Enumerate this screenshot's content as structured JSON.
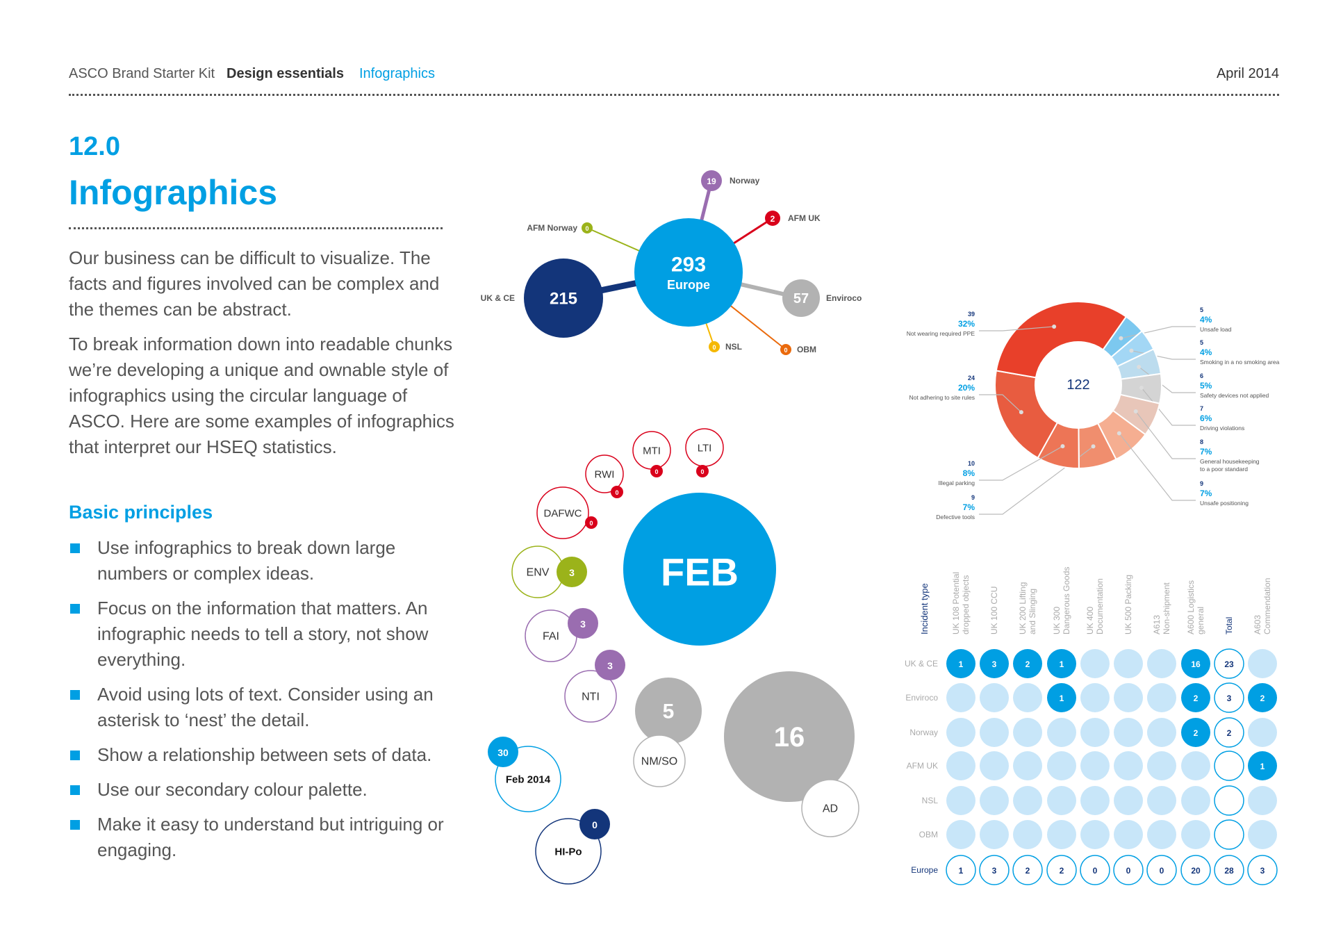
{
  "header": {
    "kit": "ASCO Brand Starter Kit",
    "section": "Design essentials",
    "page": "Infographics",
    "date": "April 2014"
  },
  "section_number": "12.0",
  "title": "Infographics",
  "intro": [
    "Our business can be difficult to visualize. The facts and figures involved can be complex and the themes can be abstract.",
    "To break information down into readable chunks we’re developing a unique and ownable style of infographics using the circular language of ASCO. Here are some examples of infographics that interpret our HSEQ statistics."
  ],
  "principles_title": "Basic principles",
  "principles": [
    "Use infographics to break down large numbers or complex ideas.",
    "Focus on the information that matters. An infographic needs to tell a story, not show everything.",
    "Avoid using lots of text. Consider using an asterisk to ‘nest’ the detail.",
    "Show a relationship between sets of data.",
    "Use our secondary colour palette.",
    "Make it easy to understand but intriguing or engaging."
  ],
  "colors": {
    "blue": "#009fe3",
    "navy": "#13357a",
    "light": "#c8e6f9",
    "grey": "#b2b2b2"
  },
  "chart_data": [
    {
      "type": "bubble-network",
      "center": {
        "label": "Europe",
        "value": 293
      },
      "nodes": [
        {
          "label": "UK & CE",
          "value": 215,
          "color": "#13357a"
        },
        {
          "label": "Norway",
          "value": 19,
          "color": "#9a6db0"
        },
        {
          "label": "AFM UK",
          "value": 2,
          "color": "#d9001b"
        },
        {
          "label": "Enviroco",
          "value": 57,
          "color": "#b2b2b2"
        },
        {
          "label": "NSL",
          "value": 0,
          "color": "#f5b800"
        },
        {
          "label": "OBM",
          "value": 0,
          "color": "#ea6a0c"
        },
        {
          "label": "AFM Norway",
          "value": 0,
          "color": "#9bb31a"
        }
      ]
    },
    {
      "type": "bubble-cluster",
      "main": "FEB",
      "items": [
        {
          "label": "16",
          "badge": null
        },
        {
          "label": "AD",
          "badge": null
        },
        {
          "label": "5",
          "badge": null
        },
        {
          "label": "NM/SO",
          "badge": null
        },
        {
          "label": "NTI",
          "badge": "3"
        },
        {
          "label": "FAI",
          "badge": "3"
        },
        {
          "label": "ENV",
          "badge": "3"
        },
        {
          "label": "DAFWC",
          "badge": "0"
        },
        {
          "label": "RWI",
          "badge": "0"
        },
        {
          "label": "MTI",
          "badge": "0"
        },
        {
          "label": "LTI",
          "badge": "0"
        },
        {
          "label": "Feb 2014",
          "badge": "30"
        },
        {
          "label": "HI-Po",
          "badge": "0"
        }
      ]
    },
    {
      "type": "pie",
      "total": "122",
      "slices": [
        {
          "label": "Unsafe load",
          "count": 5,
          "pct": "4%",
          "color": "#7cc8ef"
        },
        {
          "label": "Smoking in a no smoking area",
          "count": 5,
          "pct": "4%",
          "color": "#a3d7f5"
        },
        {
          "label": "Safety devices not applied",
          "count": 6,
          "pct": "5%",
          "color": "#bcdcee"
        },
        {
          "label": "Driving violations",
          "count": 7,
          "pct": "6%",
          "color": "#d4d4d4"
        },
        {
          "label": "General housekeeping to a poor standard",
          "count": 8,
          "pct": "7%",
          "color": "#e8c6b9"
        },
        {
          "label": "Unsafe positioning",
          "count": 9,
          "pct": "7%",
          "color": "#f5ae91"
        },
        {
          "label": "Defective tools",
          "count": 9,
          "pct": "7%",
          "color": "#f08e6e"
        },
        {
          "label": "Illegal parking",
          "count": 10,
          "pct": "8%",
          "color": "#ed7556"
        },
        {
          "label": "Not adhering to site rules",
          "count": 24,
          "pct": "20%",
          "color": "#e85c40"
        },
        {
          "label": "Not wearing required PPE",
          "count": 39,
          "pct": "32%",
          "color": "#e8402a"
        }
      ]
    },
    {
      "type": "table",
      "corner": "Incident type",
      "columns": [
        "UK 108 Potential dropped objects",
        "UK 100 CCU",
        "UK 200 Lifting and Slinging",
        "UK 300 Dangerous Goods",
        "UK 400 Documentation",
        "UK 500 Packing",
        "A613 Non-shipment",
        "A600 Logistics general",
        "Total",
        "A603 Commendation"
      ],
      "rows": [
        {
          "label": "UK & CE",
          "values": [
            1,
            3,
            2,
            1,
            null,
            null,
            null,
            16,
            23,
            null
          ]
        },
        {
          "label": "Enviroco",
          "values": [
            null,
            null,
            null,
            1,
            null,
            null,
            null,
            2,
            3,
            2
          ]
        },
        {
          "label": "Norway",
          "values": [
            null,
            null,
            null,
            null,
            null,
            null,
            null,
            2,
            2,
            null
          ]
        },
        {
          "label": "AFM UK",
          "values": [
            null,
            null,
            null,
            null,
            null,
            null,
            null,
            null,
            null,
            1
          ]
        },
        {
          "label": "NSL",
          "values": [
            null,
            null,
            null,
            null,
            null,
            null,
            null,
            null,
            null,
            null
          ]
        },
        {
          "label": "OBM",
          "values": [
            null,
            null,
            null,
            null,
            null,
            null,
            null,
            null,
            null,
            null
          ]
        },
        {
          "label": "Europe",
          "values": [
            1,
            3,
            2,
            2,
            0,
            0,
            0,
            20,
            28,
            3
          ]
        }
      ]
    }
  ]
}
